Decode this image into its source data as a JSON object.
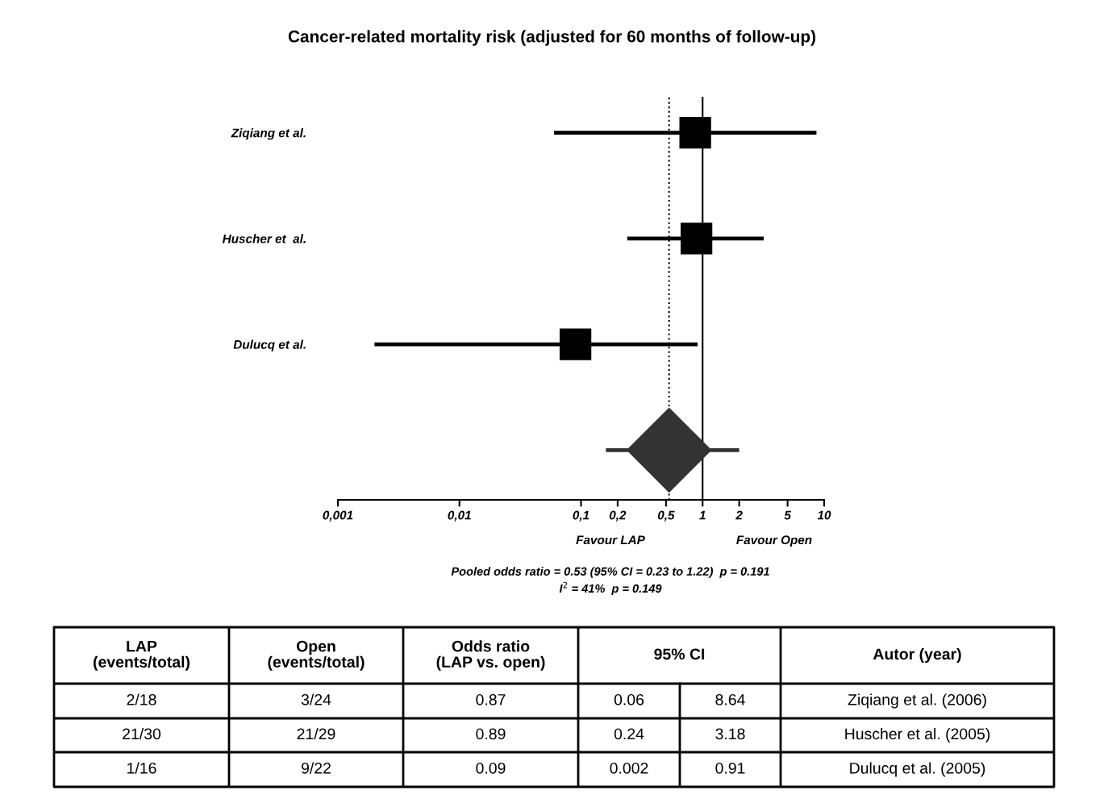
{
  "chart_data": [
    {
      "type": "scatter",
      "title": "Cancer-related mortality risk (adjusted for 60 months of follow-up)",
      "orientation": "horizontal",
      "categories": [
        "Ziqiang et al.",
        "Huscher et  al.",
        "Dulucq et al.",
        null
      ],
      "series": [
        {
          "type": "scatter",
          "color": "#000000",
          "marker": "square",
          "values": [
            0.87,
            0.89,
            0.09,
            null
          ],
          "errors": [
            [
              0.06,
              8.64
            ],
            [
              0.24,
              3.18
            ],
            [
              0.002,
              0.91
            ],
            null
          ]
        },
        {
          "type": "scatter",
          "color": "#333333",
          "marker": "diamond",
          "values": [
            null,
            null,
            null,
            0.53
          ],
          "errors": [
            null,
            null,
            null,
            [
              0.16,
              2.0
            ]
          ]
        }
      ],
      "log": "x",
      "xlim": [
        0.001,
        10
      ],
      "xticks": [
        {
          "value": 0.001,
          "label": "0,001"
        },
        {
          "value": 0.01,
          "label": "0,01"
        },
        {
          "value": 0.1,
          "label": "0,1"
        },
        {
          "value": 0.2,
          "label": "0,2"
        },
        {
          "value": 0.5,
          "label": "0,5"
        },
        1,
        2,
        5,
        10
      ],
      "ref_lines": [
        {
          "axis": "x",
          "value": 1,
          "color": "#000000",
          "line_style": "solid"
        },
        {
          "axis": "x",
          "value": 0.53,
          "color": "#000000",
          "line_style": "dotted"
        }
      ],
      "grid": false,
      "legend": false,
      "annotations": [
        "Favour LAP",
        "Favour Open",
        "Pooled odds ratio = 0.53 (95% CI = 0.23 to 1.22)  p = 0.191",
        "I$^{2}$ = 41%  p = 0.149"
      ]
    },
    {
      "type": "other",
      "categories": [
        "LAP\n(events/total)",
        "Open\n(events/total)",
        "Odds ratio\n(LAP vs. open)",
        "95% CI",
        null,
        "Autor (year)"
      ],
      "cell_labels": [
        [
          "2/18",
          "3/24",
          "0.87",
          "0.06",
          "8.64",
          "Ziqiang et al. (2006)"
        ],
        [
          "21/30",
          "21/29",
          "0.89",
          "0.24",
          "3.18",
          "Huscher et al. (2005)"
        ],
        [
          "1/16",
          "9/22",
          "0.09",
          "0.002",
          "0.91",
          "Dulucq et al. (2005)"
        ]
      ]
    }
  ]
}
